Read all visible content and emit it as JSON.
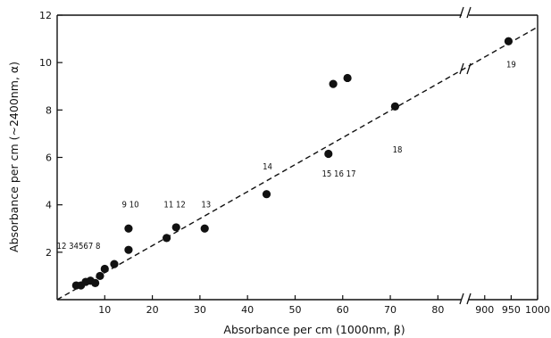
{
  "chart_data": {
    "type": "scatter",
    "title": "",
    "xlabel": "Absorbance per cm (1000nm, β)",
    "ylabel": "Absorbance per cm (~2400nm, α)",
    "x_segments": [
      {
        "range": [
          0,
          85
        ],
        "ticks": [
          10,
          20,
          30,
          40,
          50,
          60,
          70,
          80
        ],
        "tick_labels": [
          "10",
          "20",
          "30",
          "40",
          "50",
          "60",
          "70",
          "80"
        ]
      },
      {
        "range": [
          870,
          1000
        ],
        "ticks": [
          900,
          950,
          1000
        ],
        "tick_labels": [
          "900",
          "950",
          "1000"
        ]
      }
    ],
    "axis_break": "x between 85 and 870",
    "ylim": [
      0,
      12
    ],
    "y_ticks": [
      2,
      4,
      6,
      8,
      10,
      12
    ],
    "y_tick_labels": [
      "2",
      "4",
      "6",
      "8",
      "10",
      "12"
    ],
    "grid": false,
    "points": [
      {
        "x": 4,
        "y": 0.6
      },
      {
        "x": 5,
        "y": 0.6
      },
      {
        "x": 6,
        "y": 0.75
      },
      {
        "x": 7,
        "y": 0.8
      },
      {
        "x": 8,
        "y": 0.7
      },
      {
        "x": 9,
        "y": 1.0
      },
      {
        "x": 10,
        "y": 1.3
      },
      {
        "x": 12,
        "y": 1.5
      },
      {
        "x": 15,
        "y": 2.1
      },
      {
        "x": 15,
        "y": 3.0
      },
      {
        "x": 23,
        "y": 2.6
      },
      {
        "x": 25,
        "y": 3.05
      },
      {
        "x": 31,
        "y": 3.0
      },
      {
        "x": 44,
        "y": 4.45
      },
      {
        "x": 57,
        "y": 6.15
      },
      {
        "x": 58,
        "y": 9.1
      },
      {
        "x": 61,
        "y": 9.35
      },
      {
        "x": 71,
        "y": 8.15
      },
      {
        "x": 945,
        "y": 10.9
      }
    ],
    "fit_line": {
      "style": "dashed",
      "from": {
        "x": 0,
        "y": 0
      },
      "to": {
        "x": 1000,
        "y": 11.5
      }
    },
    "annotations": [
      {
        "text": "12 34567 8",
        "x": 4.5,
        "y": 2.15
      },
      {
        "text": "9 10",
        "x": 15.4,
        "y": 3.9
      },
      {
        "text": "11 12",
        "x": 24.7,
        "y": 3.9
      },
      {
        "text": "13",
        "x": 31.3,
        "y": 3.9
      },
      {
        "text": "14",
        "x": 44.2,
        "y": 5.5
      },
      {
        "text": "15 16 17",
        "x": 59.2,
        "y": 5.2
      },
      {
        "text": "18",
        "x": 71.5,
        "y": 6.2
      },
      {
        "text": "19",
        "x": 950,
        "y": 9.8
      }
    ]
  }
}
